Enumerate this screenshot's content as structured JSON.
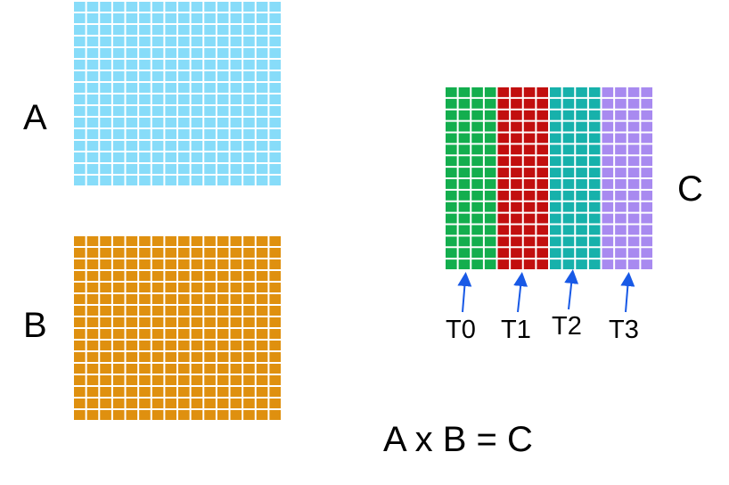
{
  "matrices": [
    {
      "id": "A",
      "label": "A",
      "color": "#87dcf9",
      "rows": 16,
      "cols": 16
    },
    {
      "id": "B",
      "label": "B",
      "color": "#df900f",
      "rows": 16,
      "cols": 16
    }
  ],
  "result": {
    "label": "C",
    "rows": 16,
    "cols_per_block": 4,
    "blocks": [
      {
        "id": "T0",
        "label": "T0",
        "color": "#13ae4e"
      },
      {
        "id": "T1",
        "label": "T1",
        "color": "#c20f0f"
      },
      {
        "id": "T2",
        "label": "T2",
        "color": "#17b1ab"
      },
      {
        "id": "T3",
        "label": "T3",
        "color": "#a88af0"
      }
    ]
  },
  "arrow_color": "#1859e6",
  "equation": "A x B = C"
}
